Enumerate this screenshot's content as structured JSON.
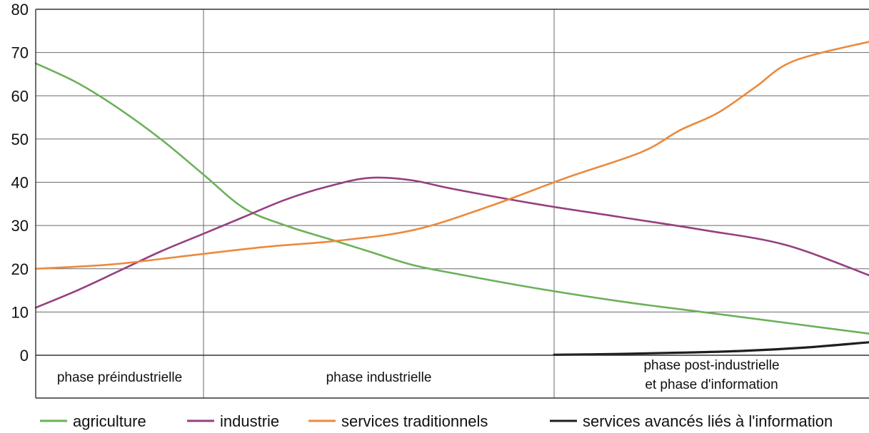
{
  "chart_data": {
    "type": "line",
    "title": "",
    "xlabel": "",
    "ylabel": "",
    "ylim": [
      0,
      80
    ],
    "yticks": [
      0,
      10,
      20,
      30,
      40,
      50,
      60,
      70,
      80
    ],
    "grid": true,
    "legend_position": "bottom",
    "phases": [
      {
        "lines": [
          "phase préindustrielle"
        ]
      },
      {
        "lines": [
          "phase industrielle"
        ]
      },
      {
        "lines": [
          "phase post-industrielle",
          "et phase d'information"
        ]
      }
    ],
    "series": [
      {
        "name": "agriculture",
        "color": "#6cb05a",
        "points": [
          [
            0,
            67.5
          ],
          [
            0.1,
            63
          ],
          [
            0.2,
            57
          ],
          [
            0.3,
            50
          ],
          [
            0.4,
            42
          ],
          [
            0.5,
            34
          ],
          [
            0.6,
            30
          ],
          [
            0.7,
            27
          ],
          [
            0.8,
            24
          ],
          [
            0.9,
            21
          ],
          [
            1.0,
            19
          ],
          [
            1.2,
            15.5
          ],
          [
            1.4,
            12.5
          ],
          [
            1.6,
            10
          ],
          [
            1.8,
            7.5
          ],
          [
            2.0,
            5
          ]
        ]
      },
      {
        "name": "industrie",
        "color": "#95407f",
        "points": [
          [
            0,
            11
          ],
          [
            0.1,
            15
          ],
          [
            0.2,
            19.5
          ],
          [
            0.3,
            24
          ],
          [
            0.4,
            28
          ],
          [
            0.5,
            32
          ],
          [
            0.6,
            36
          ],
          [
            0.7,
            39
          ],
          [
            0.8,
            41
          ],
          [
            0.9,
            40.5
          ],
          [
            1.0,
            38.5
          ],
          [
            1.2,
            35
          ],
          [
            1.4,
            32
          ],
          [
            1.6,
            29
          ],
          [
            1.8,
            25.5
          ],
          [
            2.0,
            18.5
          ]
        ]
      },
      {
        "name": "services traditionnels",
        "color": "#ec8a3c",
        "points": [
          [
            0,
            20
          ],
          [
            0.2,
            21
          ],
          [
            0.4,
            23
          ],
          [
            0.6,
            25
          ],
          [
            0.8,
            26.5
          ],
          [
            1.0,
            29
          ],
          [
            1.2,
            34.5
          ],
          [
            1.4,
            41
          ],
          [
            1.6,
            47
          ],
          [
            1.7,
            52
          ],
          [
            1.8,
            56
          ],
          [
            1.9,
            62
          ],
          [
            2.0,
            68
          ],
          [
            2.2,
            72.5
          ]
        ]
      },
      {
        "name": "services avancés liés à l'information",
        "color": "#1e1e1e",
        "points": [
          [
            0,
            0.1
          ],
          [
            0.2,
            0.3
          ],
          [
            0.4,
            0.6
          ],
          [
            0.6,
            1
          ],
          [
            0.8,
            1.8
          ],
          [
            1.0,
            3
          ]
        ]
      }
    ]
  }
}
